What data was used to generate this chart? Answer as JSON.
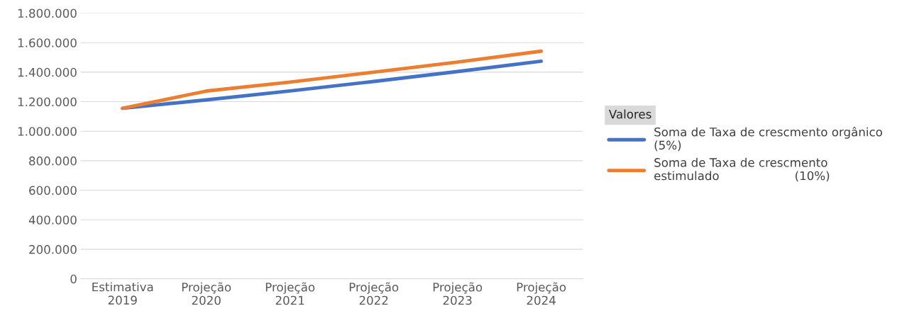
{
  "chart_data": {
    "type": "line",
    "categories": [
      "Estimativa\n2019",
      "Projeção\n2020",
      "Projeção\n2021",
      "Projeção\n2022",
      "Projeção\n2023",
      "Projeção\n2024"
    ],
    "series": [
      {
        "name": "Soma de Taxa de crescmento orgânico\n(5%)",
        "color": "#4472c4",
        "values": [
          1155000,
          1212000,
          1273000,
          1337000,
          1404000,
          1474000
        ]
      },
      {
        "name": "Soma de Taxa de crescmento\nestimulado                    (10%)",
        "color": "#ed7d31",
        "values": [
          1155000,
          1272000,
          1333000,
          1400000,
          1468000,
          1542000
        ]
      }
    ],
    "legend_title": "Valores",
    "ylim": [
      0,
      1800000
    ],
    "yticks": [
      0,
      {
        "value": 200000,
        "label": "200.000"
      },
      {
        "value": 400000,
        "label": "400.000"
      },
      {
        "value": 600000,
        "label": "600.000"
      },
      {
        "value": 800000,
        "label": "800.000"
      },
      {
        "value": 1000000,
        "label": "1.000.000"
      },
      {
        "value": 1200000,
        "label": "1.200.000"
      },
      {
        "value": 1400000,
        "label": "1.400.000"
      },
      {
        "value": 1600000,
        "label": "1.600.000"
      },
      {
        "value": 1800000,
        "label": "1.800.000"
      }
    ],
    "grid": "y",
    "legend": "right",
    "marker": "none",
    "line_style": "solid"
  }
}
